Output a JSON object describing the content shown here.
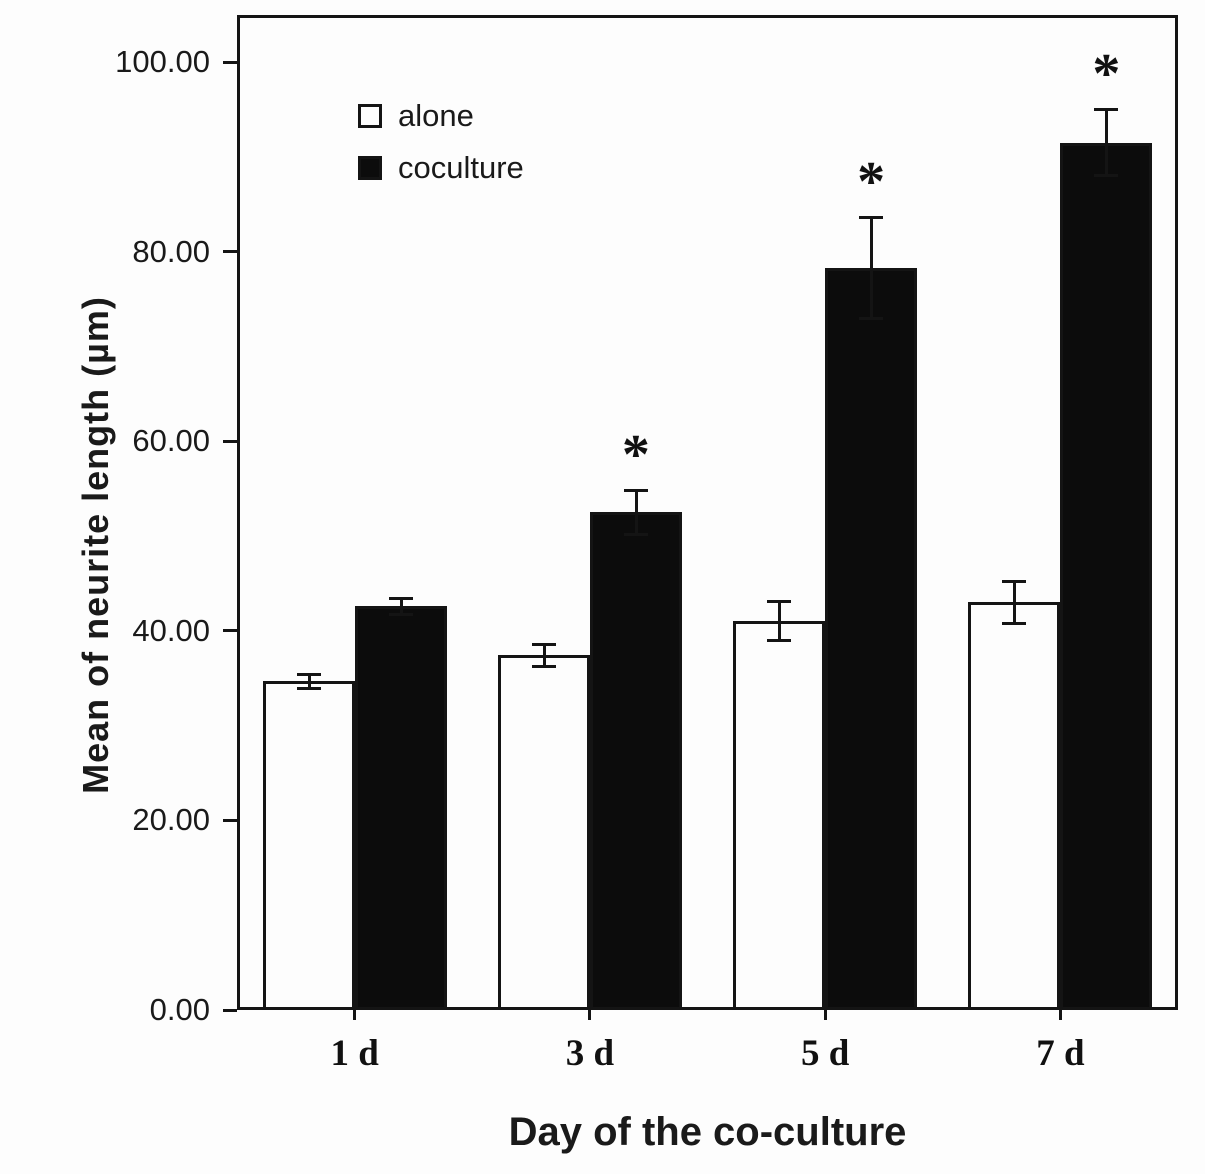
{
  "chart_data": {
    "type": "bar",
    "title": "",
    "xlabel": "Day of the co-culture",
    "ylabel": "Mean of neurite length (µm)",
    "categories": [
      "1 d",
      "3 d",
      "5 d",
      "7 d"
    ],
    "series": [
      {
        "name": "alone",
        "color": "#fdfdfd",
        "values": [
          34.7,
          37.4,
          41.0,
          43.0
        ],
        "errors": [
          0.9,
          1.3,
          2.2,
          2.4
        ],
        "significance": [
          "",
          "",
          "",
          ""
        ]
      },
      {
        "name": "coculture",
        "color": "#0c0c0c",
        "values": [
          42.6,
          52.5,
          78.3,
          91.5
        ],
        "errors": [
          1.0,
          2.5,
          5.5,
          3.6
        ],
        "significance": [
          "",
          "*",
          "*",
          "*"
        ]
      }
    ],
    "ylim": [
      0,
      100
    ],
    "yticks": [
      "0.00",
      "20.00",
      "40.00",
      "60.00",
      "80.00",
      "100.00"
    ],
    "ytick_values": [
      0,
      20,
      40,
      60,
      80,
      100
    ],
    "legend_position": "top-left",
    "grid": false,
    "significance_marker": "*",
    "bar_outline_color": "#141414",
    "frame_color": "#141414"
  }
}
